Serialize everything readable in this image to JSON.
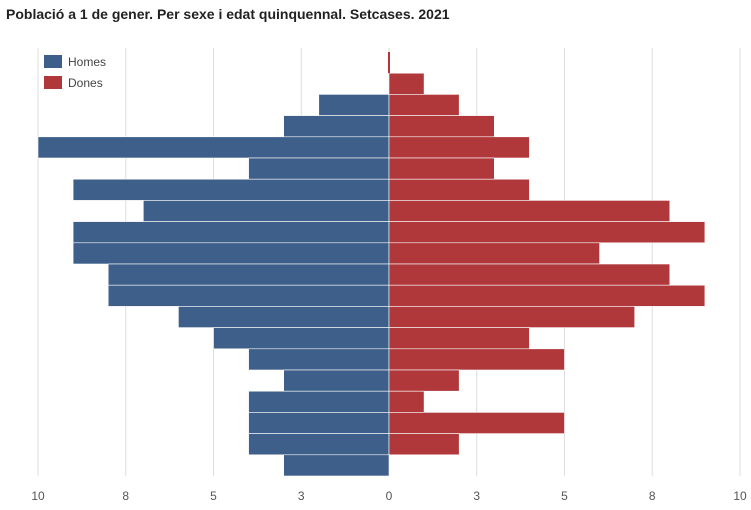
{
  "chart_data": {
    "type": "bar",
    "orientation": "horizontal-pyramid",
    "title": "Població a 1 de gener. Per sexe i edat quinquennal. Setcases. 2021",
    "xlim": [
      -10,
      10
    ],
    "tick_values": [
      -10,
      -7.5,
      -5,
      -2.5,
      0,
      2.5,
      5,
      7.5,
      10
    ],
    "tick_labels": [
      "10",
      "8",
      "5",
      "3",
      "0",
      "3",
      "5",
      "8",
      "10"
    ],
    "legend_position": "top-left",
    "series": [
      {
        "name": "Homes",
        "color": "#3d5f8a",
        "values": [
          0,
          0,
          2,
          3,
          10,
          4,
          9,
          7,
          9,
          9,
          8,
          8,
          6,
          5,
          4,
          3,
          4,
          4,
          4,
          3
        ]
      },
      {
        "name": "Dones",
        "color": "#b0383b",
        "values": [
          0,
          1,
          2,
          3,
          4,
          3,
          4,
          8,
          9,
          6,
          8,
          9,
          7,
          4,
          5,
          2,
          1,
          5,
          2,
          0
        ]
      }
    ]
  }
}
